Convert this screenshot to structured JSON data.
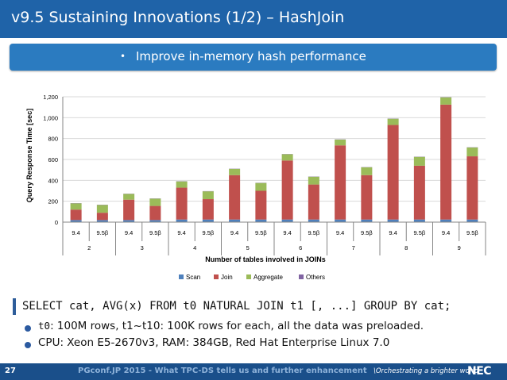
{
  "header": {
    "title": "v9.5 Sustaining Innovations (1/2) – HashJoin"
  },
  "banner": {
    "bullet": "•",
    "text": "Improve in-memory hash performance"
  },
  "chart_data": {
    "type": "bar",
    "stacked": true,
    "ylabel": "Query Response Time [sec]",
    "xlabel": "Number of tables involved in JOINs",
    "ylim": [
      0,
      1200
    ],
    "yticks": [
      0,
      200,
      400,
      600,
      800,
      1000,
      1200
    ],
    "ytick_labels": [
      "0",
      "200",
      "400",
      "600",
      "800",
      "1,000",
      "1,200"
    ],
    "grid": true,
    "legend_position": "bottom",
    "categories": [
      "9.4",
      "9.5β",
      "9.4",
      "9.5β",
      "9.4",
      "9.5β",
      "9.4",
      "9.5β",
      "9.4",
      "9.5β",
      "9.4",
      "9.5β",
      "9.4",
      "9.5β",
      "9.4",
      "9.5β"
    ],
    "groups": [
      {
        "label": "2",
        "span": 2
      },
      {
        "label": "3",
        "span": 2
      },
      {
        "label": "4",
        "span": 2
      },
      {
        "label": "5",
        "span": 2
      },
      {
        "label": "6",
        "span": 2
      },
      {
        "label": "7",
        "span": 2
      },
      {
        "label": "8",
        "span": 2
      },
      {
        "label": "9",
        "span": 2
      }
    ],
    "series": [
      {
        "name": "Scan",
        "color": "#4f81bd",
        "values": [
          20,
          20,
          20,
          20,
          25,
          25,
          25,
          25,
          25,
          25,
          25,
          25,
          25,
          25,
          25,
          25
        ]
      },
      {
        "name": "Join",
        "color": "#c0504d",
        "values": [
          100,
          70,
          195,
          135,
          305,
          195,
          425,
          275,
          565,
          335,
          710,
          425,
          905,
          515,
          1100,
          605
        ]
      },
      {
        "name": "Aggregate",
        "color": "#9bbb59",
        "values": [
          60,
          75,
          55,
          70,
          60,
          75,
          60,
          75,
          60,
          75,
          55,
          75,
          60,
          85,
          70,
          85
        ]
      },
      {
        "name": "Others",
        "color": "#8064a2",
        "values": [
          2,
          2,
          2,
          2,
          2,
          2,
          2,
          2,
          2,
          2,
          2,
          2,
          2,
          2,
          2,
          2
        ]
      }
    ]
  },
  "code": {
    "query": "SELECT cat, AVG(x) FROM t0 NATURAL JOIN t1 [, ...] GROUP BY cat;"
  },
  "bullets": [
    {
      "code": "t0",
      "text": ": 100M rows, t1~t10: 100K rows for each, all the data was preloaded."
    },
    {
      "code": "",
      "text": "CPU: Xeon E5-2670v3, RAM: 384GB, Red Hat Enterprise Linux 7.0"
    }
  ],
  "footer": {
    "page_number": "27",
    "text": "PGconf.JP 2015 - What TPC-DS tells us and further enhancement",
    "slogan": "\\Orchestrating a brighter world",
    "logo": "NEC"
  }
}
